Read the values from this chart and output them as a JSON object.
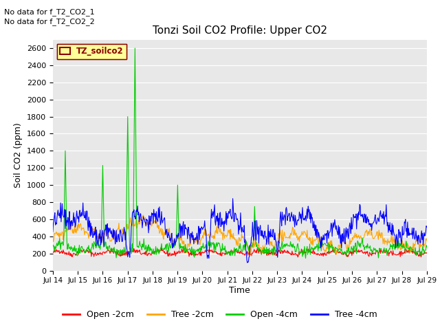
{
  "title": "Tonzi Soil CO2 Profile: Upper CO2",
  "ylabel": "Soil CO2 (ppm)",
  "xlabel": "Time",
  "annotations": [
    "No data for f_T2_CO2_1",
    "No data for f_T2_CO2_2"
  ],
  "legend_label": "TZ_soilco2",
  "legend_entries": [
    "Open -2cm",
    "Tree -2cm",
    "Open -4cm",
    "Tree -4cm"
  ],
  "legend_colors": [
    "#ff0000",
    "#ffa500",
    "#00cc00",
    "#0000ff"
  ],
  "ylim": [
    0,
    2700
  ],
  "yticks": [
    0,
    200,
    400,
    600,
    800,
    1000,
    1200,
    1400,
    1600,
    1800,
    2000,
    2200,
    2400,
    2600
  ],
  "fig_bg": "#ffffff",
  "plot_bg": "#e8e8e8",
  "n_points": 720,
  "start_day": 14,
  "end_day": 29
}
